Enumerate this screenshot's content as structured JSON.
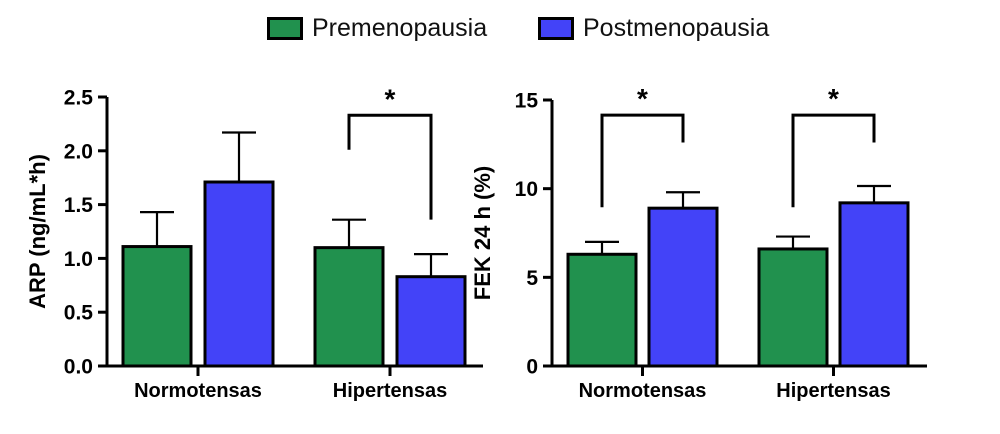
{
  "legend": {
    "items": [
      {
        "label": "Premenopausia",
        "color": "#21914E"
      },
      {
        "label": "Postmenopausia",
        "color": "#4343F8"
      }
    ]
  },
  "colors": {
    "bar_outline": "#000000",
    "axis": "#000000",
    "text": "#000000",
    "background": "#ffffff"
  },
  "chart_data": [
    {
      "type": "bar",
      "title": "",
      "ylabel": "ARP (ng/mL*h)",
      "xlabel": "",
      "categories": [
        "Normotensas",
        "Hipertensas"
      ],
      "series": [
        {
          "name": "Premenopausia",
          "color": "#21914E",
          "values": [
            1.11,
            1.1
          ],
          "error_plus": [
            0.32,
            0.26
          ]
        },
        {
          "name": "Postmenopausia",
          "color": "#4343F8",
          "values": [
            1.71,
            0.83
          ],
          "error_plus": [
            0.46,
            0.21
          ]
        }
      ],
      "ylim": [
        0,
        2.5
      ],
      "ytick_values": [
        0,
        0.5,
        1.0,
        1.5,
        2.0,
        2.5
      ],
      "ytick_labels": [
        "0.0",
        "0.5",
        "1.0",
        "1.5",
        "2.0",
        "2.5"
      ],
      "grid": false,
      "legend_position": "top",
      "significance": [
        {
          "category_index": 1,
          "label": "*",
          "bar_value": 2.33,
          "left_leg_value": 2.01,
          "right_leg_value": 1.36
        }
      ]
    },
    {
      "type": "bar",
      "title": "",
      "ylabel": "FEK 24 h (%)",
      "xlabel": "",
      "categories": [
        "Normotensas",
        "Hipertensas"
      ],
      "series": [
        {
          "name": "Premenopausia",
          "color": "#21914E",
          "values": [
            6.3,
            6.6
          ],
          "error_plus": [
            0.7,
            0.7
          ]
        },
        {
          "name": "Postmenopausia",
          "color": "#4343F8",
          "values": [
            8.9,
            9.2
          ],
          "error_plus": [
            0.9,
            0.95
          ]
        }
      ],
      "ylim": [
        0,
        15
      ],
      "ytick_values": [
        0,
        5,
        10,
        15
      ],
      "ytick_labels": [
        "0",
        "5",
        "10",
        "15"
      ],
      "grid": false,
      "legend_position": "top",
      "significance": [
        {
          "category_index": 0,
          "label": "*",
          "bar_value": 14.15,
          "left_leg_value": 8.95,
          "right_leg_value": 12.6
        },
        {
          "category_index": 1,
          "label": "*",
          "bar_value": 14.15,
          "left_leg_value": 8.95,
          "right_leg_value": 12.6
        }
      ]
    }
  ]
}
